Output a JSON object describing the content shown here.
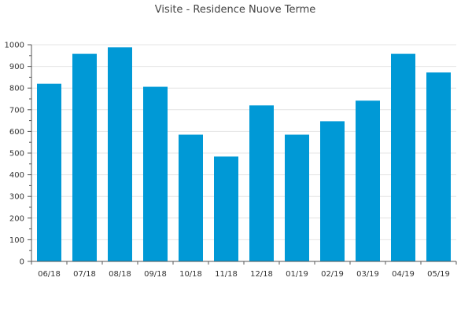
{
  "chart_data": {
    "type": "bar",
    "title": "Visite - Residence Nuove Terme",
    "xlabel": "",
    "ylabel": "",
    "categories": [
      "06/18",
      "07/18",
      "08/18",
      "09/18",
      "10/18",
      "11/18",
      "12/18",
      "01/19",
      "02/19",
      "03/19",
      "04/19",
      "05/19"
    ],
    "values": [
      820,
      958,
      988,
      806,
      585,
      484,
      720,
      585,
      647,
      742,
      958,
      872
    ],
    "ylim": [
      0,
      1000
    ],
    "yticks": [
      0,
      100,
      200,
      300,
      400,
      500,
      600,
      700,
      800,
      900,
      1000
    ],
    "grid": true,
    "bar_color": "#0099d6"
  }
}
